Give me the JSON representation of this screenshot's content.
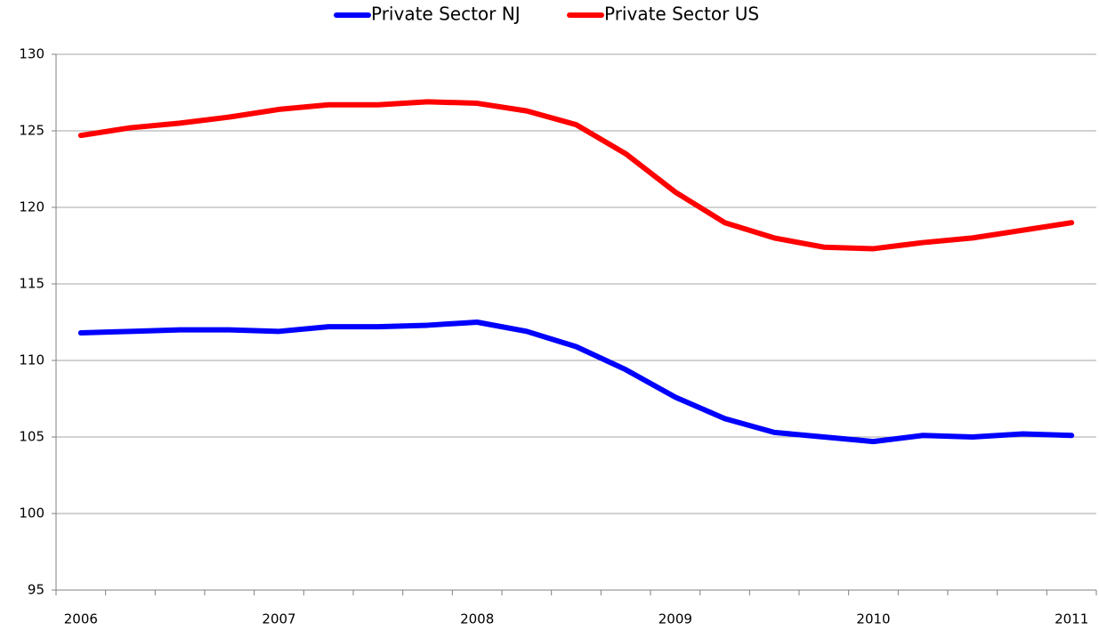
{
  "chart_data": {
    "type": "line",
    "categories": [
      "2006",
      null,
      null,
      null,
      "2007",
      null,
      null,
      null,
      "2008",
      null,
      null,
      null,
      "2009",
      null,
      null,
      null,
      "2010",
      null,
      null,
      null,
      "2011"
    ],
    "series": [
      {
        "name": "Private Sector NJ",
        "color": "#0000ff",
        "values": [
          111.8,
          111.9,
          112.0,
          112.0,
          111.9,
          112.2,
          112.2,
          112.3,
          112.5,
          111.9,
          110.9,
          109.4,
          107.6,
          106.2,
          105.3,
          105.0,
          104.7,
          105.1,
          105.0,
          105.2,
          105.1
        ]
      },
      {
        "name": "Private Sector US",
        "color": "#ff0000",
        "values": [
          124.7,
          125.2,
          125.5,
          125.9,
          126.4,
          126.7,
          126.7,
          126.9,
          126.8,
          126.3,
          125.4,
          123.5,
          121.0,
          119.0,
          118.0,
          117.4,
          117.3,
          117.7,
          118.0,
          118.5,
          119.0
        ]
      }
    ],
    "ylim": [
      95,
      130
    ],
    "yticks": [
      95,
      100,
      105,
      110,
      115,
      120,
      125,
      130
    ],
    "grid": true,
    "legend": "top"
  }
}
